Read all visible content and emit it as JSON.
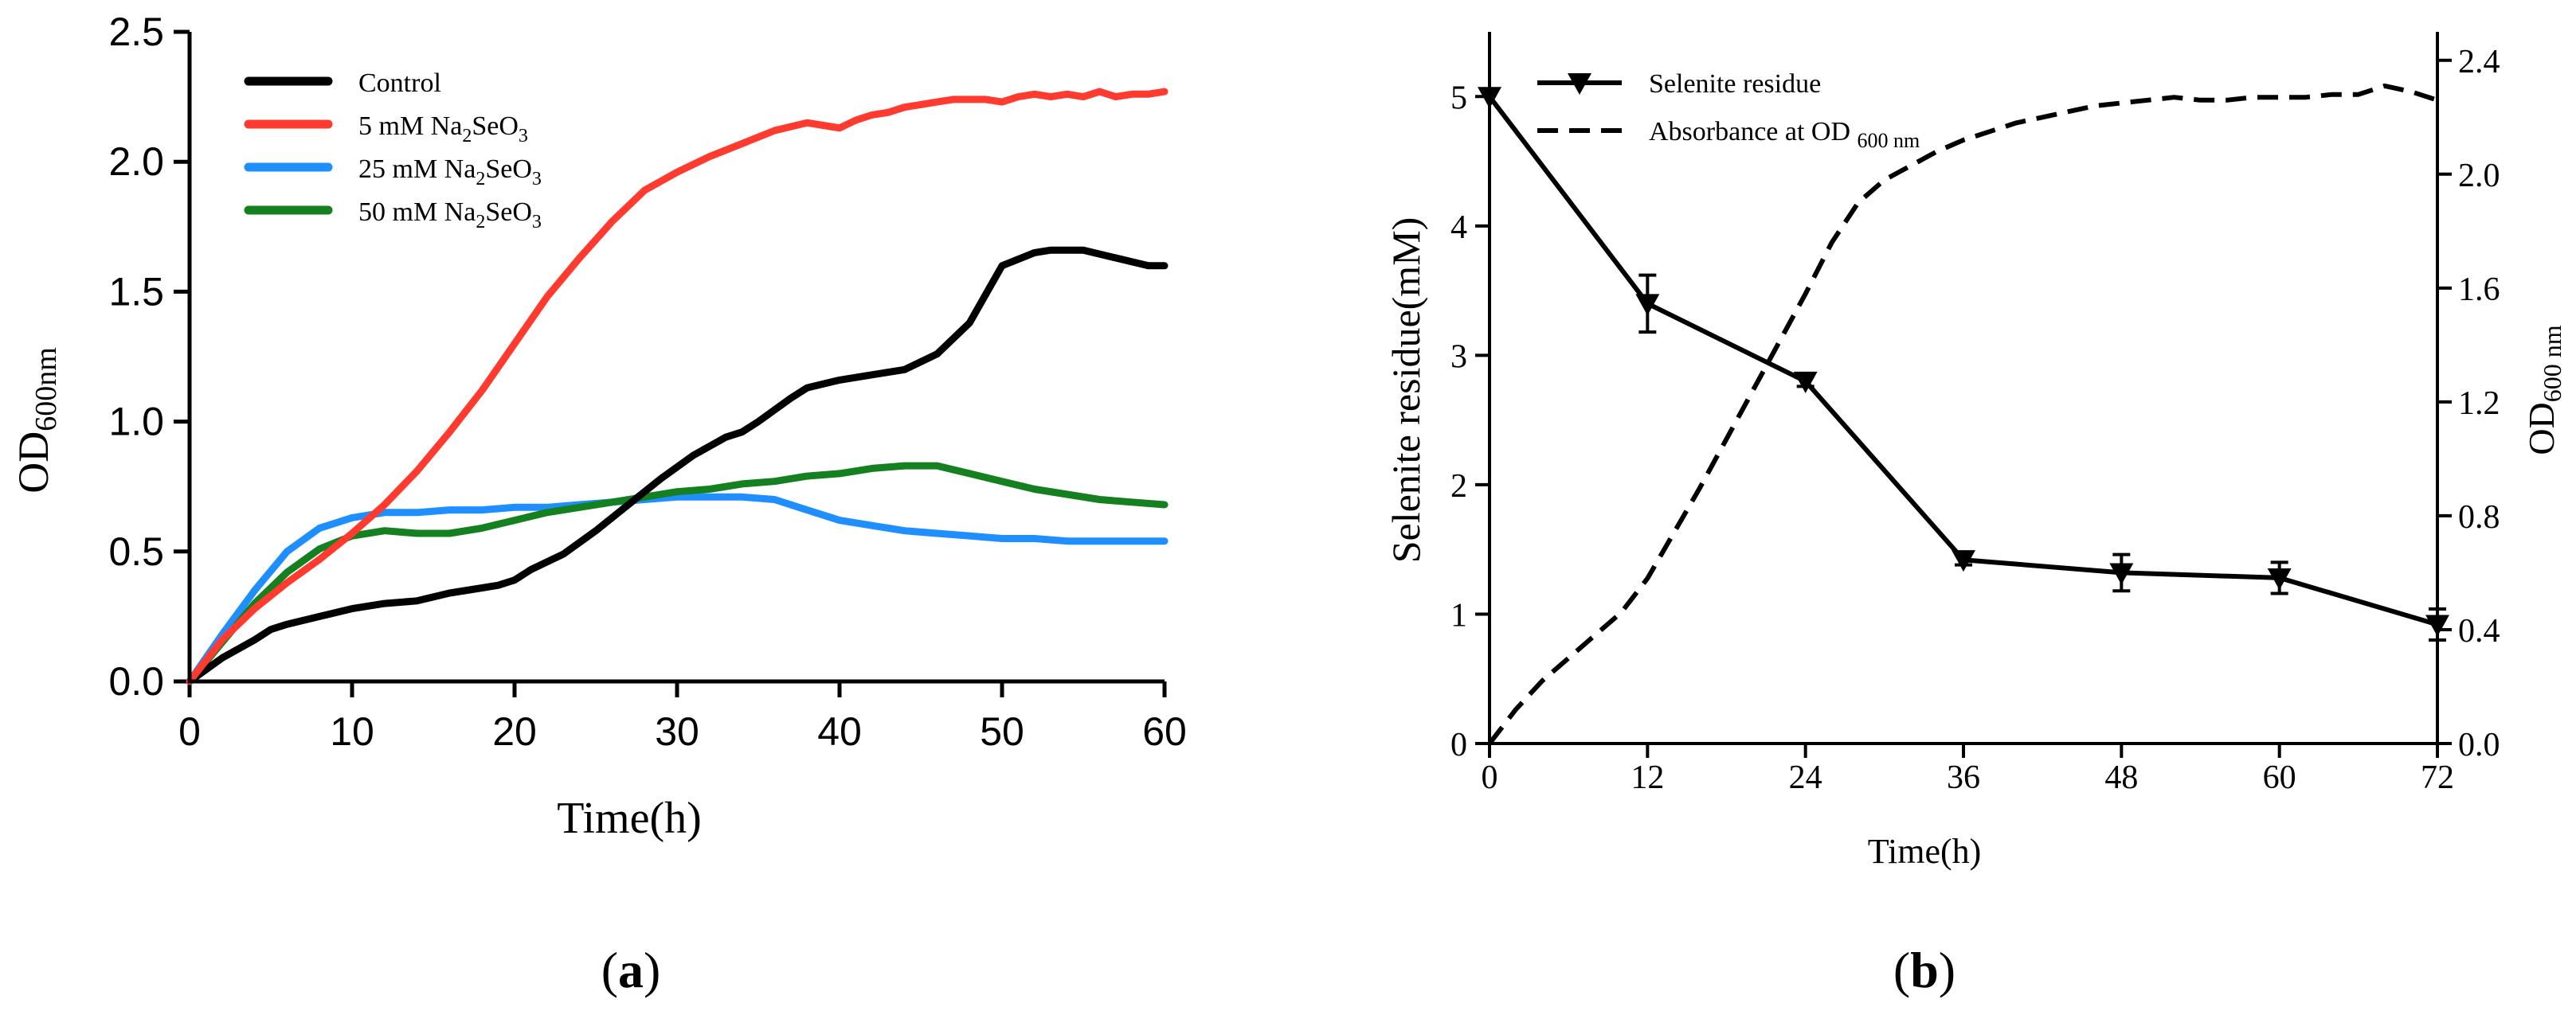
{
  "panel_labels": {
    "a": "a",
    "b": "b"
  },
  "chart_data": [
    {
      "id": "a",
      "type": "line",
      "title": "",
      "xlabel": "Time(h)",
      "ylabel_main": "OD",
      "ylabel_sub": "600nm",
      "xlim": [
        0,
        60
      ],
      "ylim": [
        0,
        2.5
      ],
      "xticks": [
        0,
        10,
        20,
        30,
        40,
        50,
        60
      ],
      "xtick_labels": [
        "0",
        "10",
        "20",
        "30",
        "40",
        "50",
        "60"
      ],
      "yticks": [
        0,
        0.5,
        1.0,
        1.5,
        2.0,
        2.5
      ],
      "ytick_labels": [
        "0.0",
        "0.5",
        "1.0",
        "1.5",
        "2.0",
        "2.5"
      ],
      "grid": false,
      "legend_position": "top-left",
      "series": [
        {
          "name": "Control",
          "label_parts": [
            {
              "t": "Control"
            }
          ],
          "color": "#000000",
          "x": [
            0,
            2,
            4,
            5,
            6,
            8,
            10,
            12,
            14,
            16,
            18,
            19,
            20,
            21,
            23,
            25,
            27,
            29,
            31,
            33,
            34,
            35,
            37,
            38,
            40,
            42,
            43,
            44,
            46,
            48,
            50,
            52,
            53,
            55,
            57,
            59,
            60
          ],
          "y": [
            0.0,
            0.09,
            0.16,
            0.2,
            0.22,
            0.25,
            0.28,
            0.3,
            0.31,
            0.34,
            0.36,
            0.37,
            0.39,
            0.43,
            0.49,
            0.58,
            0.68,
            0.78,
            0.87,
            0.94,
            0.96,
            1.0,
            1.09,
            1.13,
            1.16,
            1.18,
            1.19,
            1.2,
            1.26,
            1.38,
            1.6,
            1.65,
            1.66,
            1.66,
            1.63,
            1.6,
            1.6
          ]
        },
        {
          "name": "5 mM Na2SeO3",
          "label_parts": [
            {
              "t": "5 mM Na"
            },
            {
              "t": "2",
              "sub": true
            },
            {
              "t": "SeO"
            },
            {
              "t": "3",
              "sub": true
            }
          ],
          "color": "#ff3b30",
          "x": [
            0,
            2,
            4,
            6,
            8,
            10,
            12,
            14,
            16,
            18,
            20,
            22,
            24,
            26,
            28,
            30,
            32,
            34,
            36,
            38,
            39,
            40,
            41,
            42,
            43,
            44,
            45,
            46,
            47,
            48,
            49,
            50,
            51,
            52,
            53,
            54,
            55,
            56,
            57,
            58,
            59,
            60
          ],
          "y": [
            0.0,
            0.16,
            0.28,
            0.38,
            0.47,
            0.57,
            0.68,
            0.81,
            0.96,
            1.12,
            1.3,
            1.48,
            1.63,
            1.77,
            1.89,
            1.96,
            2.02,
            2.07,
            2.12,
            2.15,
            2.14,
            2.13,
            2.16,
            2.18,
            2.19,
            2.21,
            2.22,
            2.23,
            2.24,
            2.24,
            2.24,
            2.23,
            2.25,
            2.26,
            2.25,
            2.26,
            2.25,
            2.27,
            2.25,
            2.26,
            2.26,
            2.27
          ]
        },
        {
          "name": "25 mM Na2SeO3",
          "label_parts": [
            {
              "t": "25 mM Na"
            },
            {
              "t": "2",
              "sub": true
            },
            {
              "t": "SeO"
            },
            {
              "t": "3",
              "sub": true
            }
          ],
          "color": "#1f8fff",
          "x": [
            0,
            2,
            4,
            6,
            8,
            10,
            12,
            14,
            16,
            18,
            20,
            22,
            24,
            26,
            28,
            30,
            32,
            34,
            36,
            38,
            40,
            42,
            44,
            46,
            48,
            50,
            52,
            54,
            56,
            58,
            60
          ],
          "y": [
            0.0,
            0.18,
            0.35,
            0.5,
            0.59,
            0.63,
            0.65,
            0.65,
            0.66,
            0.66,
            0.67,
            0.67,
            0.68,
            0.69,
            0.7,
            0.71,
            0.71,
            0.71,
            0.7,
            0.66,
            0.62,
            0.6,
            0.58,
            0.57,
            0.56,
            0.55,
            0.55,
            0.54,
            0.54,
            0.54,
            0.54
          ]
        },
        {
          "name": "50 mM Na2SeO3",
          "label_parts": [
            {
              "t": "50 mM Na"
            },
            {
              "t": "2",
              "sub": true
            },
            {
              "t": "SeO"
            },
            {
              "t": "3",
              "sub": true
            }
          ],
          "color": "#15801f",
          "x": [
            0,
            2,
            4,
            6,
            8,
            10,
            12,
            14,
            16,
            18,
            20,
            22,
            24,
            26,
            28,
            30,
            32,
            34,
            36,
            38,
            40,
            42,
            44,
            46,
            48,
            50,
            52,
            54,
            56,
            58,
            60
          ],
          "y": [
            0.0,
            0.15,
            0.3,
            0.42,
            0.51,
            0.56,
            0.58,
            0.57,
            0.57,
            0.59,
            0.62,
            0.65,
            0.67,
            0.69,
            0.71,
            0.73,
            0.74,
            0.76,
            0.77,
            0.79,
            0.8,
            0.82,
            0.83,
            0.83,
            0.8,
            0.77,
            0.74,
            0.72,
            0.7,
            0.69,
            0.68
          ]
        }
      ]
    },
    {
      "id": "b",
      "type": "line",
      "title": "",
      "xlabel": "Time(h)",
      "ylabel_left": "Selenite residue(mM)",
      "ylabel_right_main": "OD",
      "ylabel_right_sub": "600 nm",
      "xlim": [
        0,
        72
      ],
      "ylim_left": [
        0,
        5.5
      ],
      "ylim_right": [
        0,
        2.5
      ],
      "xticks": [
        0,
        12,
        24,
        36,
        48,
        60,
        72
      ],
      "xtick_labels": [
        "0",
        "12",
        "24",
        "36",
        "48",
        "60",
        "72"
      ],
      "yticks_left": [
        0,
        1,
        2,
        3,
        4,
        5
      ],
      "ytick_labels_left": [
        "0",
        "1",
        "2",
        "3",
        "4",
        "5"
      ],
      "yticks_right": [
        0,
        0.4,
        0.8,
        1.2,
        1.6,
        2.0,
        2.4
      ],
      "ytick_labels_right": [
        "0.0",
        "0.4",
        "0.8",
        "1.2",
        "1.6",
        "2.0",
        "2.4"
      ],
      "grid": false,
      "legend_position": "top-left",
      "series": [
        {
          "name": "Selenite residue",
          "label_parts": [
            {
              "t": "Selenite residue"
            }
          ],
          "axis": "left",
          "style": "solid-triangle-markers",
          "color": "#000000",
          "x": [
            0,
            12,
            24,
            36,
            48,
            60,
            72
          ],
          "y": [
            5.0,
            3.4,
            2.8,
            1.42,
            1.32,
            1.28,
            0.92
          ],
          "err": [
            0.0,
            0.22,
            0.04,
            0.04,
            0.14,
            0.12,
            0.12
          ]
        },
        {
          "name": "Absorbance at OD 600 nm",
          "label_parts": [
            {
              "t": "Absorbance at OD "
            },
            {
              "t": "600 nm",
              "sub": true
            }
          ],
          "axis": "right",
          "style": "dashed",
          "color": "#000000",
          "x": [
            0,
            2,
            4,
            6,
            8,
            10,
            12,
            14,
            16,
            18,
            20,
            22,
            24,
            26,
            28,
            30,
            32,
            34,
            36,
            38,
            40,
            42,
            44,
            46,
            48,
            50,
            52,
            54,
            56,
            58,
            60,
            62,
            64,
            66,
            68,
            70,
            72
          ],
          "y": [
            0.0,
            0.12,
            0.22,
            0.3,
            0.38,
            0.46,
            0.58,
            0.74,
            0.9,
            1.07,
            1.24,
            1.41,
            1.58,
            1.76,
            1.9,
            1.98,
            2.03,
            2.08,
            2.12,
            2.15,
            2.18,
            2.2,
            2.22,
            2.24,
            2.25,
            2.26,
            2.27,
            2.26,
            2.26,
            2.27,
            2.27,
            2.27,
            2.28,
            2.28,
            2.31,
            2.29,
            2.26
          ]
        }
      ]
    }
  ]
}
